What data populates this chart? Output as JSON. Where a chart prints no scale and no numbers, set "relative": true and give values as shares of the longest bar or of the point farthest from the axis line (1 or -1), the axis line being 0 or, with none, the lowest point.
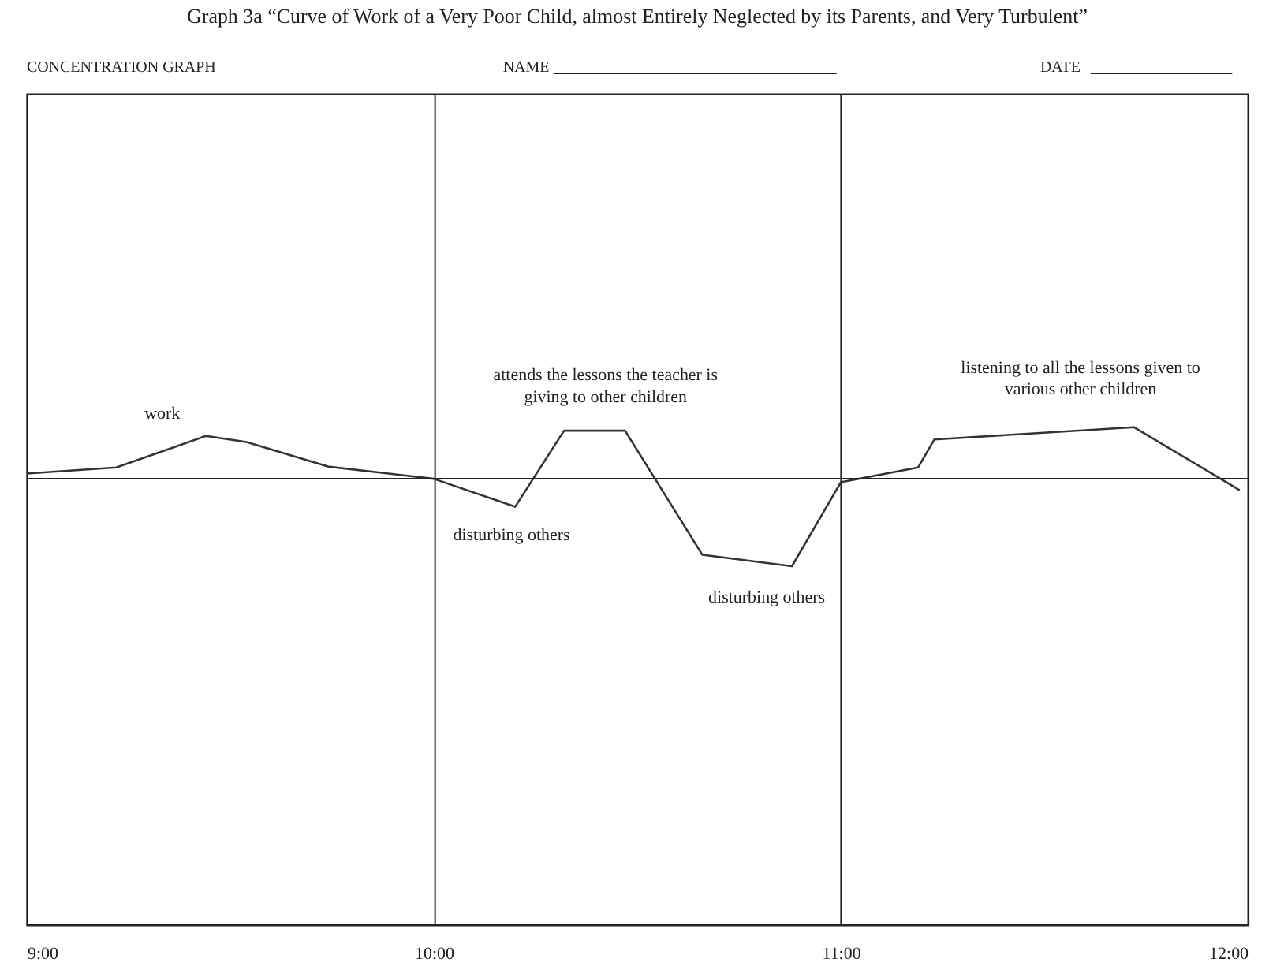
{
  "chart_data": {
    "type": "line",
    "title": "Graph 3a “Curve of Work of a Very Poor Child, almost Entirely Neglected by its Parents, and Very Turbulent”",
    "relative": true,
    "x": [
      9.0,
      9.22,
      9.44,
      9.54,
      9.74,
      10.0,
      10.2,
      10.32,
      10.47,
      10.66,
      10.88,
      11.0,
      11.19,
      11.23,
      11.72,
      11.98
    ],
    "series": [
      {
        "color": "#333333",
        "values": [
          0.06,
          0.13,
          0.49,
          0.42,
          0.14,
          0.0,
          -0.32,
          0.55,
          0.55,
          -0.87,
          -1.0,
          -0.04,
          0.13,
          0.45,
          0.59,
          -0.13
        ]
      }
    ],
    "xlim": [
      9,
      12
    ],
    "xticks": [
      {
        "value": 9,
        "label": "9:00"
      },
      {
        "value": 10,
        "label": "10:00"
      },
      {
        "value": 11,
        "label": "11:00"
      },
      {
        "value": 12,
        "label": "12:00"
      }
    ],
    "grid": "x",
    "tick_labels": "x",
    "marker": "none",
    "line_style": "solid",
    "annotations": [
      "CONCENTRATION GRAPH",
      "NAME",
      "DATE",
      "work",
      "attends the lessons the teacher is\ngiving to other children",
      "disturbing others",
      "disturbing others",
      "listening to all the lessons given to\nvarious other children"
    ]
  }
}
